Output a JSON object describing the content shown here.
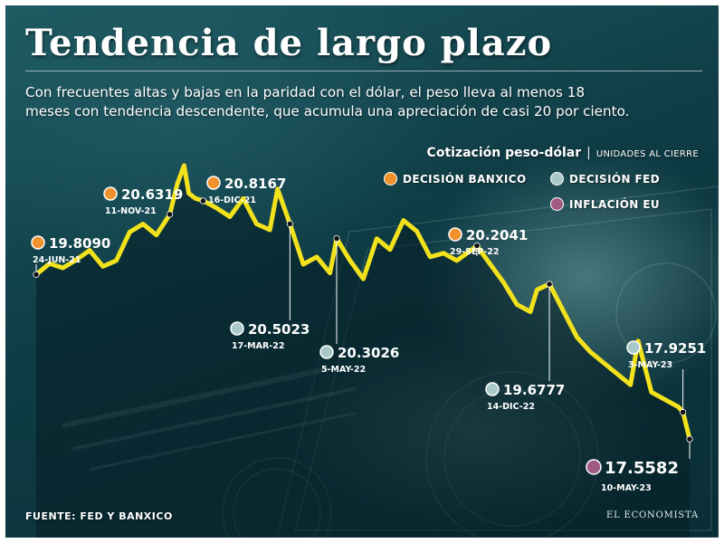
{
  "title": "Tendencia de largo plazo",
  "subtitle_lines": [
    "Con frecuentes altas y bajas en la paridad con el dólar, el peso lleva al menos 18",
    "meses con tendencia descendente, que acumula una apreciación de casi 20 por ciento."
  ],
  "legend": {
    "title": "Cotización peso-dólar",
    "separator": "|",
    "units": "UNIDADES AL CIERRE",
    "items": [
      {
        "label": "DECISIÓN BANXICO",
        "color": "#f0922b"
      },
      {
        "label": "DECISIÓN FED",
        "color": "#a9c9c9"
      },
      {
        "label": "INFLACIÓN EU",
        "color": "#a05b84"
      }
    ]
  },
  "source": "FUENTE: FED Y BANXICO",
  "brand": "EL ECONOMISTA",
  "colors": {
    "line": "#f2e21c",
    "banxico": "#f0922b",
    "fed": "#a9c9c9",
    "inflacion": "#a05b84",
    "background": "#0f3c45"
  },
  "chart_data": {
    "type": "line",
    "title": "Cotización peso-dólar",
    "units": "UNIDADES AL CIERRE",
    "x_range": [
      "2021-06-24",
      "2023-05-10"
    ],
    "y_range": [
      17.3,
      21.2
    ],
    "grid": false,
    "legend_position": "top-right",
    "series": [
      {
        "name": "Cotización peso-dólar",
        "color": "#f2e21c",
        "x": [
          "2021-06-24",
          "2021-07-08",
          "2021-07-22",
          "2021-08-05",
          "2021-08-19",
          "2021-09-02",
          "2021-09-16",
          "2021-09-30",
          "2021-10-14",
          "2021-10-28",
          "2021-11-11",
          "2021-11-19",
          "2021-11-26",
          "2021-12-01",
          "2021-12-08",
          "2021-12-16",
          "2021-12-30",
          "2022-01-13",
          "2022-01-27",
          "2022-02-10",
          "2022-02-24",
          "2022-03-04",
          "2022-03-17",
          "2022-03-31",
          "2022-04-14",
          "2022-04-28",
          "2022-05-05",
          "2022-05-19",
          "2022-06-02",
          "2022-06-16",
          "2022-06-30",
          "2022-07-14",
          "2022-07-28",
          "2022-08-11",
          "2022-08-25",
          "2022-09-08",
          "2022-09-29",
          "2022-10-13",
          "2022-10-27",
          "2022-11-10",
          "2022-11-24",
          "2022-12-01",
          "2022-12-14",
          "2022-12-29",
          "2023-01-12",
          "2023-01-26",
          "2023-02-09",
          "2023-02-23",
          "2023-03-09",
          "2023-03-17",
          "2023-03-31",
          "2023-04-14",
          "2023-04-28",
          "2023-05-03",
          "2023-05-10"
        ],
        "values": [
          19.81,
          19.96,
          19.9,
          20.01,
          20.14,
          19.92,
          20.0,
          20.39,
          20.5,
          20.35,
          20.63,
          21.05,
          21.3,
          20.92,
          20.85,
          20.82,
          20.72,
          20.6,
          20.85,
          20.5,
          20.42,
          20.98,
          20.5,
          19.95,
          20.05,
          19.83,
          20.3,
          20.0,
          19.75,
          20.3,
          20.15,
          20.55,
          20.4,
          20.05,
          20.1,
          20.0,
          20.2,
          19.95,
          19.7,
          19.4,
          19.3,
          19.6,
          19.68,
          19.3,
          18.95,
          18.75,
          18.6,
          18.45,
          18.3,
          18.9,
          18.2,
          18.1,
          18.0,
          17.93,
          17.56
        ]
      }
    ],
    "annotations": [
      {
        "value": "19.8090",
        "date": "24-JUN-21",
        "x": "2021-06-24",
        "y": 19.809,
        "type": "banxico"
      },
      {
        "value": "20.6319",
        "date": "11-NOV-21",
        "x": "2021-11-11",
        "y": 20.6319,
        "type": "banxico"
      },
      {
        "value": "20.8167",
        "date": "16-DIC-21",
        "x": "2021-12-16",
        "y": 20.8167,
        "type": "banxico"
      },
      {
        "value": "20.5023",
        "date": "17-MAR-22",
        "x": "2022-03-17",
        "y": 20.5023,
        "type": "fed"
      },
      {
        "value": "20.3026",
        "date": "5-MAY-22",
        "x": "2022-05-05",
        "y": 20.3026,
        "type": "fed"
      },
      {
        "value": "20.2041",
        "date": "29-SEP-22",
        "x": "2022-09-29",
        "y": 20.2041,
        "type": "banxico"
      },
      {
        "value": "19.6777",
        "date": "14-DIC-22",
        "x": "2022-12-14",
        "y": 19.6777,
        "type": "fed"
      },
      {
        "value": "17.9251",
        "date": "3-MAY-23",
        "x": "2023-05-03",
        "y": 17.9251,
        "type": "fed"
      },
      {
        "value": "17.5582",
        "date": "10-MAY-23",
        "x": "2023-05-10",
        "y": 17.5582,
        "type": "inflacion"
      }
    ]
  }
}
